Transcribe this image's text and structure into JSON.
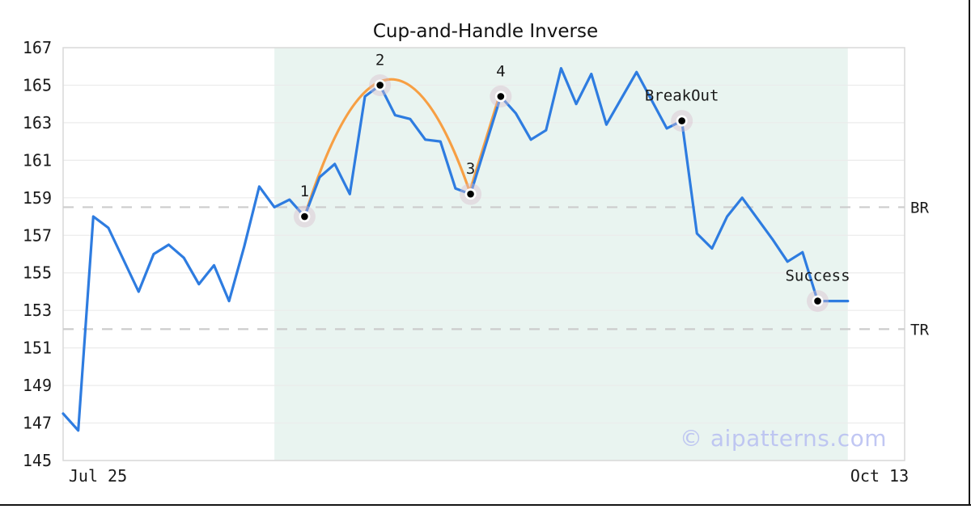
{
  "chart_data": {
    "type": "line",
    "title": "Cup-and-Handle Inverse",
    "watermark": "© aipatterns.com",
    "x_axis": {
      "tick_labels": [
        "Jul 25",
        "Oct 13"
      ]
    },
    "y_axis": {
      "ticks": [
        145,
        147,
        149,
        151,
        153,
        155,
        157,
        159,
        161,
        163,
        165,
        167
      ],
      "range": [
        145,
        167
      ]
    },
    "series": [
      {
        "name": "price",
        "values": [
          147.5,
          146.6,
          158.0,
          157.4,
          155.7,
          154.0,
          156.0,
          156.5,
          155.8,
          154.4,
          155.4,
          153.5,
          156.4,
          159.6,
          158.5,
          158.9,
          158.0,
          160.1,
          160.8,
          159.2,
          164.4,
          165.0,
          163.4,
          163.2,
          162.1,
          162.0,
          159.5,
          159.2,
          161.8,
          164.4,
          163.5,
          162.1,
          162.6,
          165.9,
          164.0,
          165.6,
          162.9,
          164.3,
          165.7,
          164.2,
          162.7,
          163.1,
          157.1,
          156.3,
          158.0,
          159.0,
          157.9,
          156.8,
          155.6,
          156.1,
          153.5,
          153.5,
          153.5
        ]
      }
    ],
    "pattern_overlay": {
      "cup": {
        "from_index": 16,
        "to_index": 27,
        "peak_value": 165.3
      },
      "handle": {
        "from_index": 27,
        "to_index": 29
      }
    },
    "levels": [
      {
        "label": "BR",
        "value": 158.5
      },
      {
        "label": "TR",
        "value": 152.0
      }
    ],
    "shaded_region": {
      "from_index": 14,
      "to_index": 52
    },
    "annotations": [
      {
        "label": "1",
        "index": 16,
        "value": 158.0
      },
      {
        "label": "2",
        "index": 21,
        "value": 165.0
      },
      {
        "label": "3",
        "index": 27,
        "value": 159.2
      },
      {
        "label": "4",
        "index": 29,
        "value": 164.4
      },
      {
        "label": "BreakOut",
        "index": 41,
        "value": 163.1
      },
      {
        "label": "Success",
        "index": 50,
        "value": 153.5
      }
    ],
    "colors": {
      "line": "#2e7ce0",
      "pattern": "#f79f43",
      "shade": "#e9f4f0",
      "grid": "#ebebeb",
      "dashed": "#cccccc",
      "spine": "#d9d9d9",
      "halo": "#d9bccd",
      "marker_dot": "#000000",
      "text": "#1a1a1a",
      "watermark": "#b7bef2",
      "frame": "#141414"
    }
  }
}
